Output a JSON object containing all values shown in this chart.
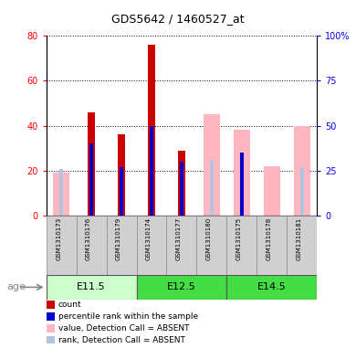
{
  "title": "GDS5642 / 1460527_at",
  "samples": [
    "GSM1310173",
    "GSM1310176",
    "GSM1310179",
    "GSM1310174",
    "GSM1310177",
    "GSM1310180",
    "GSM1310175",
    "GSM1310178",
    "GSM1310181"
  ],
  "count_values": [
    0,
    46,
    36,
    76,
    29,
    0,
    0,
    0,
    0
  ],
  "rank_values_pct": [
    0,
    40,
    27,
    50,
    30,
    0,
    35,
    0,
    0
  ],
  "absent_value": [
    19,
    0,
    0,
    0,
    0,
    45,
    38,
    22,
    40
  ],
  "absent_rank_pct": [
    26,
    0,
    0,
    0,
    0,
    31,
    0,
    0,
    27
  ],
  "ylim_left": [
    0,
    80
  ],
  "ylim_right": [
    0,
    100
  ],
  "yticks_left": [
    0,
    20,
    40,
    60,
    80
  ],
  "yticks_left_labels": [
    "0",
    "20",
    "40",
    "60",
    "80"
  ],
  "yticks_right": [
    0,
    25,
    50,
    75,
    100
  ],
  "yticks_right_labels": [
    "0",
    "25",
    "50",
    "75",
    "100%"
  ],
  "count_color": "#CC0000",
  "rank_color": "#0000CC",
  "absent_value_color": "#FFB6C1",
  "absent_rank_color": "#B0C4DE",
  "group_info": [
    {
      "label": "E11.5",
      "start": 0,
      "end": 3,
      "color": "#CCFFCC"
    },
    {
      "label": "E12.5",
      "start": 3,
      "end": 6,
      "color": "#44DD44"
    },
    {
      "label": "E14.5",
      "start": 6,
      "end": 9,
      "color": "#44DD44"
    }
  ],
  "age_label": "age",
  "legend_items": [
    {
      "color": "#CC0000",
      "label": "count"
    },
    {
      "color": "#0000CC",
      "label": "percentile rank within the sample"
    },
    {
      "color": "#FFB6C1",
      "label": "value, Detection Call = ABSENT"
    },
    {
      "color": "#B0C4DE",
      "label": "rank, Detection Call = ABSENT"
    }
  ]
}
